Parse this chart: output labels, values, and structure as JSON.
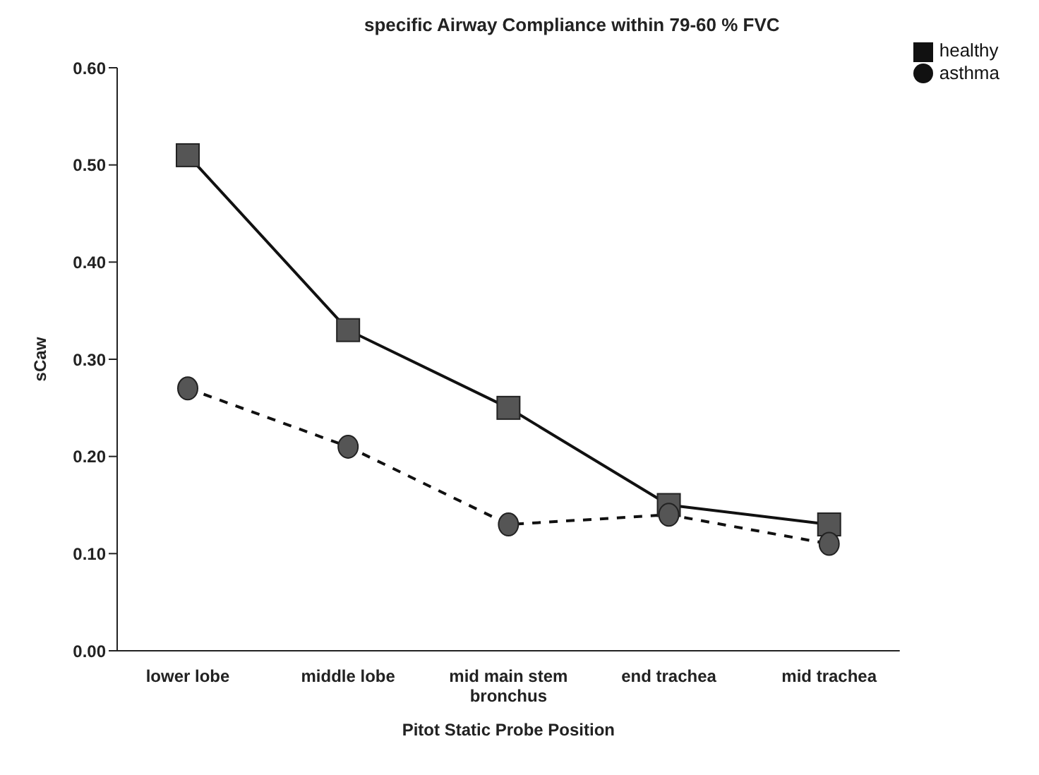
{
  "chart_data": {
    "type": "line",
    "title": "specific Airway Compliance within 79-60 % FVC",
    "xlabel": "Pitot Static Probe Position",
    "ylabel": "sCaw",
    "categories": [
      "lower lobe",
      "middle lobe",
      "mid main stem bronchus",
      "end trachea",
      "mid trachea"
    ],
    "series": [
      {
        "name": "healthy",
        "color": "#555555",
        "values": [
          0.51,
          0.33,
          0.25,
          0.15,
          0.13
        ],
        "marker": "square",
        "line_style": "solid"
      },
      {
        "name": "asthma",
        "color": "#555555",
        "values": [
          0.27,
          0.21,
          0.13,
          0.14,
          0.11
        ],
        "marker": "circle",
        "line_style": "dashed"
      }
    ],
    "ylim": [
      0,
      0.6
    ],
    "yticks": [
      {
        "value": 0,
        "label": "0.00"
      },
      {
        "value": 0.1,
        "label": "0.10"
      },
      {
        "value": 0.2,
        "label": "0.20"
      },
      {
        "value": 0.3,
        "label": "0.30"
      },
      {
        "value": 0.4,
        "label": "0.40"
      },
      {
        "value": 0.5,
        "label": "0.50"
      },
      {
        "value": 0.6,
        "label": "0.60"
      }
    ],
    "grid": false,
    "legend": "top right"
  }
}
